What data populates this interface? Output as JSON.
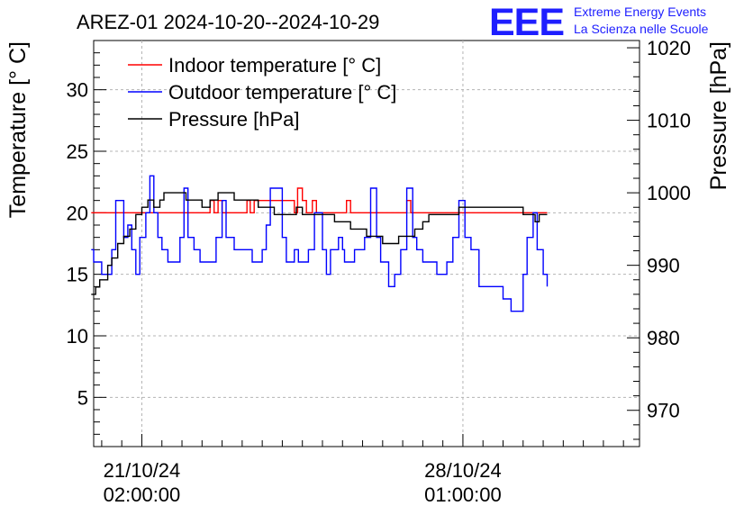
{
  "title": "AREZ-01 2024-10-20--2024-10-29",
  "logo": {
    "letters": "EEE",
    "line1": "Extreme Energy Events",
    "line2": "La Scienza nelle Scuole",
    "color": "#0000ff"
  },
  "chart_data": {
    "type": "line",
    "title": "AREZ-01 2024-10-20--2024-10-29",
    "xlabel": "",
    "ylabel_left": "Temperature [° C]",
    "ylabel_right": "Pressure [hPa]",
    "xlim": [
      -1.2,
      12.4
    ],
    "ylim_left": [
      1,
      34
    ],
    "ylim_right": [
      965,
      1021
    ],
    "yticks_left": [
      5,
      10,
      15,
      20,
      25,
      30
    ],
    "yticks_right": [
      970,
      980,
      990,
      1000,
      1010,
      1020
    ],
    "xticks": [
      {
        "x": 0,
        "line1": "21/10/24",
        "line2": "02:00:00"
      },
      {
        "x": 8,
        "line1": "28/10/24",
        "line2": "01:00:00"
      }
    ],
    "grid": true,
    "legend_position": "top-left",
    "series": [
      {
        "name": "Indoor temperature [° C]",
        "axis": "left",
        "color": "#ff0000",
        "x": [
          -1.26,
          1.6,
          1.7,
          1.8,
          1.9,
          2.0,
          2.5,
          2.62,
          2.7,
          2.8,
          3.8,
          3.88,
          4.0,
          4.1,
          4.25,
          4.35,
          5.0,
          5.1,
          5.2,
          6.55,
          6.6,
          6.7,
          10.1
        ],
        "y": [
          20,
          20,
          21,
          20,
          21,
          20,
          20,
          21,
          20,
          21,
          20,
          22,
          21,
          20,
          21,
          20,
          20,
          21,
          20,
          20,
          21,
          20,
          20
        ]
      },
      {
        "name": "Outdoor temperature [° C]",
        "axis": "left",
        "color": "#0000ff",
        "x": [
          -1.26,
          -1.2,
          -1.1,
          -1.0,
          -0.9,
          -0.75,
          -0.65,
          -0.55,
          -0.45,
          -0.35,
          -0.25,
          -0.15,
          -0.05,
          0.1,
          0.2,
          0.3,
          0.4,
          0.5,
          0.6,
          0.65,
          0.75,
          0.85,
          0.95,
          1.05,
          1.15,
          1.3,
          1.45,
          1.6,
          1.75,
          1.85,
          2.0,
          2.1,
          2.3,
          2.4,
          2.5,
          2.6,
          2.75,
          2.9,
          3.0,
          3.1,
          3.2,
          3.5,
          3.6,
          3.7,
          3.8,
          3.9,
          4.0,
          4.15,
          4.3,
          4.5,
          4.6,
          4.7,
          4.8,
          4.9,
          5.0,
          5.05,
          5.15,
          5.3,
          5.45,
          5.55,
          5.7,
          5.85,
          5.95,
          6.05,
          6.15,
          6.3,
          6.45,
          6.6,
          6.75,
          6.85,
          7.0,
          7.1,
          7.2,
          7.35,
          7.45,
          7.6,
          7.75,
          7.9,
          8.05,
          8.2,
          8.4,
          8.5,
          8.6,
          8.8,
          9.0,
          9.2,
          9.35,
          9.5,
          9.6,
          9.75,
          9.85,
          10.0,
          10.1
        ],
        "y": [
          17,
          16,
          16,
          15,
          15,
          17,
          21,
          21,
          18,
          19,
          17,
          15,
          18,
          20,
          23,
          20,
          18,
          17,
          17,
          16,
          16,
          16,
          18,
          22,
          18,
          17,
          16,
          16,
          16,
          18,
          21,
          18,
          17,
          17,
          17,
          17,
          16,
          16,
          17,
          19,
          22,
          18,
          16,
          16,
          17,
          16,
          16,
          17,
          20,
          17,
          15,
          17,
          17,
          18,
          17,
          16,
          16,
          17,
          17,
          18,
          22,
          18,
          16,
          16,
          14,
          15,
          17,
          22,
          18,
          17,
          16,
          16,
          16,
          15,
          15,
          16,
          18,
          21,
          18,
          17,
          14,
          14,
          14,
          14,
          13,
          12,
          12,
          15,
          18,
          20,
          17,
          15,
          14
        ]
      },
      {
        "name": "Pressure [hPa]",
        "axis": "right",
        "color": "#000000",
        "x": [
          -1.26,
          -1.15,
          -1.05,
          -0.95,
          -0.85,
          -0.75,
          -0.6,
          -0.45,
          -0.3,
          -0.15,
          0.0,
          0.15,
          0.3,
          0.45,
          0.55,
          0.7,
          0.9,
          1.1,
          1.3,
          1.5,
          1.7,
          1.9,
          2.1,
          2.3,
          2.5,
          2.7,
          2.9,
          3.1,
          3.3,
          3.5,
          3.7,
          3.85,
          4.0,
          4.2,
          4.4,
          4.6,
          4.8,
          5.0,
          5.2,
          5.4,
          5.6,
          5.8,
          6.0,
          6.2,
          6.4,
          6.6,
          6.8,
          7.0,
          7.15,
          7.3,
          7.5,
          7.7,
          7.9,
          8.1,
          8.3,
          8.5,
          8.7,
          8.9,
          9.1,
          9.3,
          9.5,
          9.65,
          9.8,
          9.9,
          10.0,
          10.1
        ],
        "y": [
          986,
          987,
          988,
          988,
          990,
          991,
          993,
          994,
          995,
          997,
          998,
          999,
          998,
          999,
          1000,
          1000,
          1000,
          999,
          999,
          998,
          999,
          1000,
          1000,
          999,
          999,
          999,
          998,
          998,
          997,
          997,
          997,
          998,
          997,
          997,
          997,
          997,
          996,
          996,
          995,
          995,
          994,
          994,
          993,
          993,
          994,
          994,
          995,
          996,
          997,
          997,
          997,
          997,
          998,
          998,
          998,
          998,
          998,
          998,
          998,
          998,
          997,
          997,
          996,
          997,
          997,
          997
        ]
      }
    ]
  }
}
